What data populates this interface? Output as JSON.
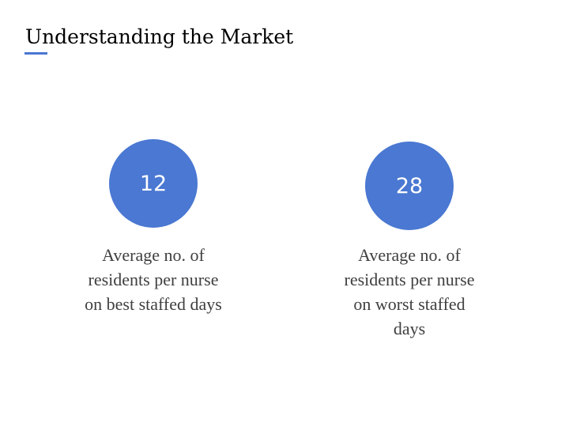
{
  "slide": {
    "title": "Understanding the Market",
    "accent_color": "#4a78d2"
  },
  "stats": [
    {
      "value": "12",
      "caption_lines": [
        "Average no. of",
        "residents per nurse",
        "on best staffed days"
      ]
    },
    {
      "value": "28",
      "caption_lines": [
        "Average no. of",
        "residents per nurse",
        "on worst staffed",
        "days"
      ]
    }
  ]
}
